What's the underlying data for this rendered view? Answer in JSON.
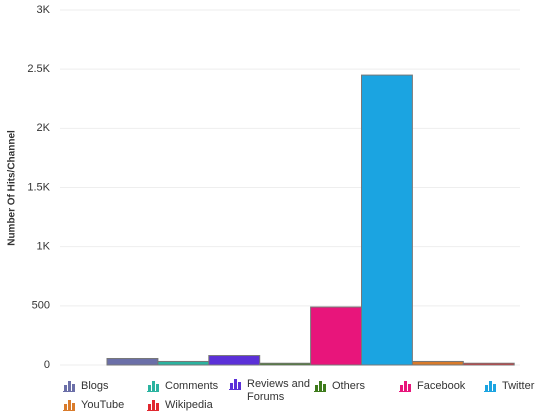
{
  "chart_data": {
    "type": "bar",
    "y_label": "Number Of Hits/Channel",
    "ylim": [
      0,
      3000
    ],
    "yticks": [
      0,
      500,
      {
        "value": 1000,
        "label": "1K"
      },
      {
        "value": 1500,
        "label": "1.5K"
      },
      {
        "value": 2000,
        "label": "2K"
      },
      {
        "value": 2500,
        "label": "2.5K"
      },
      {
        "value": 3000,
        "label": "3K"
      }
    ],
    "grid": true,
    "series": [
      {
        "name": "Blogs",
        "color": "#6b6fa8",
        "values": [
          55
        ]
      },
      {
        "name": "Comments",
        "color": "#2bb3a0",
        "values": [
          30
        ]
      },
      {
        "name": "Reviews and Forums",
        "color": "#5b30d8",
        "values": [
          80
        ]
      },
      {
        "name": "Others",
        "color": "#3e7b1c",
        "values": [
          15
        ]
      },
      {
        "name": "Facebook",
        "color": "#e8157b",
        "values": [
          490
        ]
      },
      {
        "name": "Twitter",
        "color": "#1ba4e1",
        "values": [
          2450
        ]
      },
      {
        "name": "YouTube",
        "color": "#d97b2b",
        "values": [
          30
        ]
      },
      {
        "name": "Wikipedia",
        "color": "#e0282f",
        "values": [
          15
        ]
      }
    ]
  }
}
